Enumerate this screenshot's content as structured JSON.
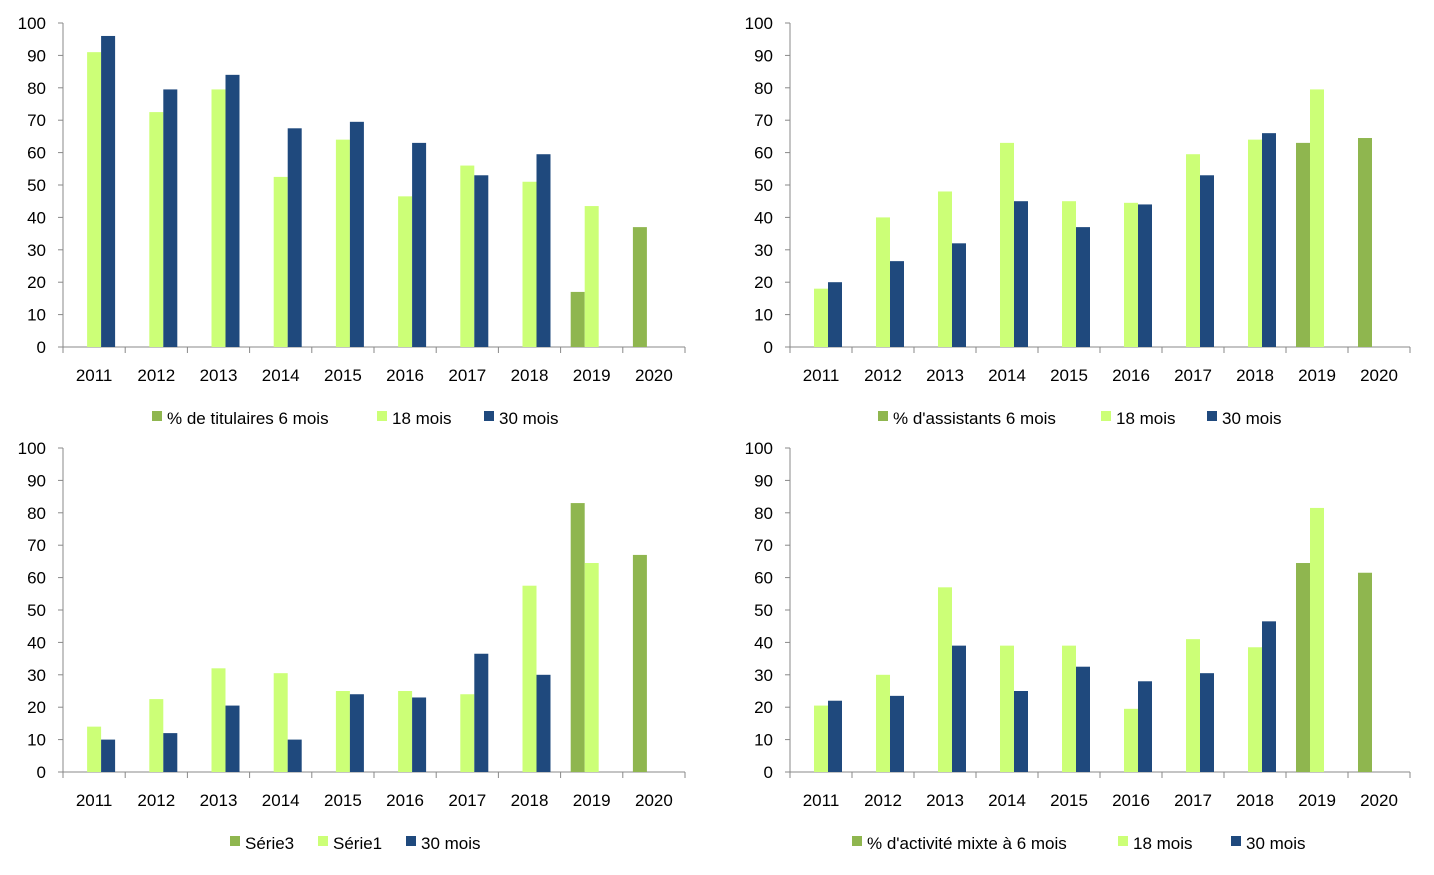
{
  "colors": {
    "six_months": "#8fb64f",
    "eighteen_months": "#ccff77",
    "thirty_months": "#1f497d"
  },
  "chart_data": [
    {
      "type": "bar",
      "categories": [
        "2011",
        "2012",
        "2013",
        "2014",
        "2015",
        "2016",
        "2017",
        "2018",
        "2019",
        "2020"
      ],
      "ylim": [
        0,
        100
      ],
      "yticks": [
        0,
        10,
        20,
        30,
        40,
        50,
        60,
        70,
        80,
        90,
        100
      ],
      "grid": false,
      "legend_position": "bottom",
      "series": [
        {
          "name": "% de titulaires 6 mois",
          "color": "#8fb64f",
          "values": [
            null,
            null,
            null,
            null,
            null,
            null,
            null,
            null,
            17,
            37
          ]
        },
        {
          "name": "18 mois",
          "color": "#ccff77",
          "values": [
            91,
            72.5,
            79.5,
            52.5,
            64,
            46.5,
            56,
            51,
            43.5,
            null
          ]
        },
        {
          "name": "30 mois",
          "color": "#1f497d",
          "values": [
            96,
            79.5,
            84,
            67.5,
            69.5,
            63,
            53,
            59.5,
            null,
            null
          ]
        }
      ]
    },
    {
      "type": "bar",
      "categories": [
        "2011",
        "2012",
        "2013",
        "2014",
        "2015",
        "2016",
        "2017",
        "2018",
        "2019",
        "2020"
      ],
      "ylim": [
        0,
        100
      ],
      "yticks": [
        0,
        10,
        20,
        30,
        40,
        50,
        60,
        70,
        80,
        90,
        100
      ],
      "grid": false,
      "legend_position": "bottom",
      "series": [
        {
          "name": "% d'assistants 6 mois",
          "color": "#8fb64f",
          "values": [
            null,
            null,
            null,
            null,
            null,
            null,
            null,
            null,
            63,
            64.5
          ]
        },
        {
          "name": "18 mois",
          "color": "#ccff77",
          "values": [
            18,
            40,
            48,
            63,
            45,
            44.5,
            59.5,
            64,
            79.5,
            null
          ]
        },
        {
          "name": "30 mois",
          "color": "#1f497d",
          "values": [
            20,
            26.5,
            32,
            45,
            37,
            44,
            53,
            66,
            null,
            null
          ]
        }
      ]
    },
    {
      "type": "bar",
      "categories": [
        "2011",
        "2012",
        "2013",
        "2014",
        "2015",
        "2016",
        "2017",
        "2018",
        "2019",
        "2020"
      ],
      "ylim": [
        0,
        100
      ],
      "yticks": [
        0,
        10,
        20,
        30,
        40,
        50,
        60,
        70,
        80,
        90,
        100
      ],
      "grid": false,
      "legend_position": "bottom",
      "series": [
        {
          "name": "Série3",
          "color": "#8fb64f",
          "values": [
            null,
            null,
            null,
            null,
            null,
            null,
            null,
            null,
            83,
            67
          ]
        },
        {
          "name": "Série1",
          "color": "#ccff77",
          "values": [
            14,
            22.5,
            32,
            30.5,
            25,
            25,
            24,
            57.5,
            64.5,
            null
          ]
        },
        {
          "name": "30 mois",
          "color": "#1f497d",
          "values": [
            10,
            12,
            20.5,
            10,
            24,
            23,
            36.5,
            30,
            null,
            null
          ]
        }
      ]
    },
    {
      "type": "bar",
      "categories": [
        "2011",
        "2012",
        "2013",
        "2014",
        "2015",
        "2016",
        "2017",
        "2018",
        "2019",
        "2020"
      ],
      "ylim": [
        0,
        100
      ],
      "yticks": [
        0,
        10,
        20,
        30,
        40,
        50,
        60,
        70,
        80,
        90,
        100
      ],
      "grid": false,
      "legend_position": "bottom",
      "series": [
        {
          "name": "% d'activité mixte à 6 mois",
          "color": "#8fb64f",
          "values": [
            null,
            null,
            null,
            null,
            null,
            null,
            null,
            null,
            64.5,
            61.5
          ]
        },
        {
          "name": "18 mois",
          "color": "#ccff77",
          "values": [
            20.5,
            30,
            57,
            39,
            39,
            19.5,
            41,
            38.5,
            81.5,
            null
          ]
        },
        {
          "name": "30 mois",
          "color": "#1f497d",
          "values": [
            22,
            23.5,
            39,
            25,
            32.5,
            28,
            30.5,
            46.5,
            null,
            null
          ]
        }
      ]
    }
  ]
}
